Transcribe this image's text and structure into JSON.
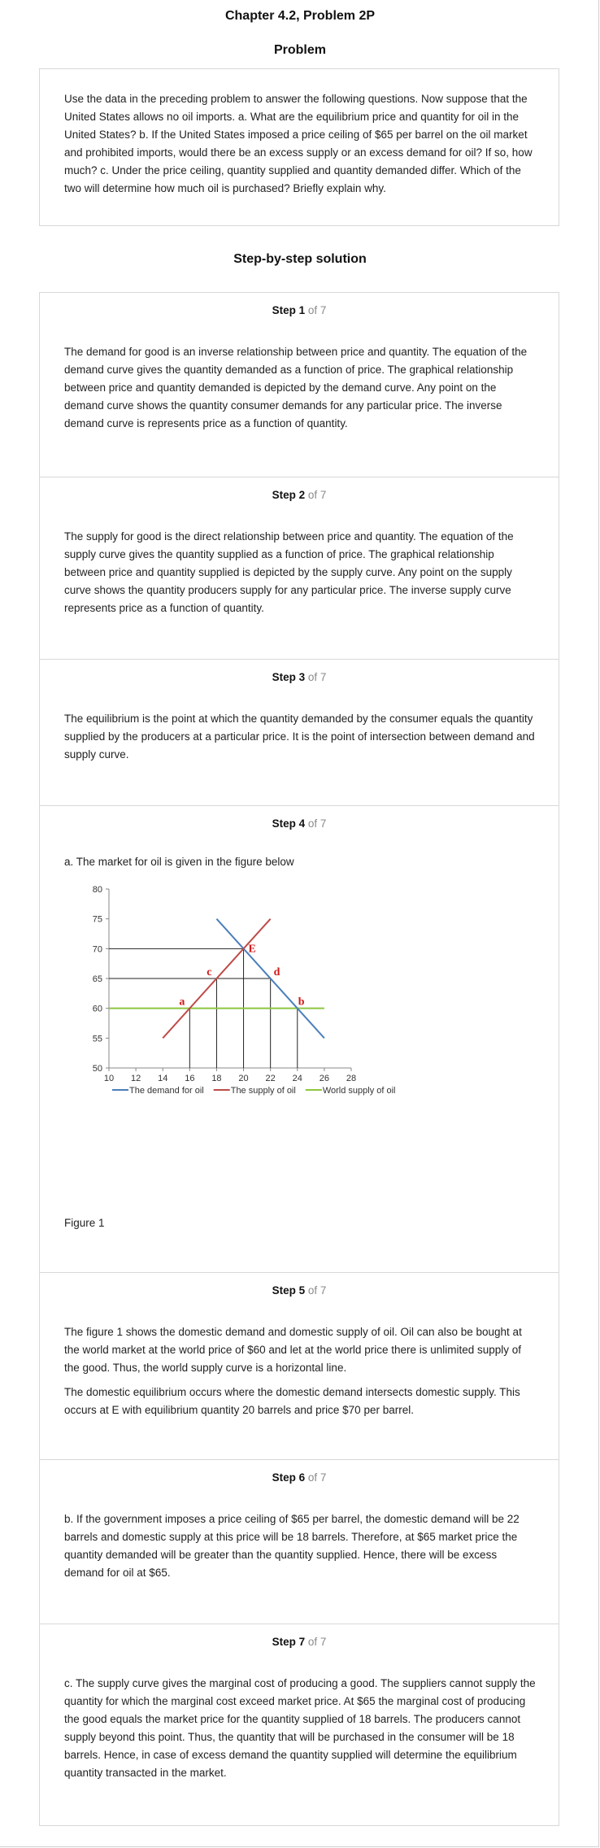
{
  "header": {
    "title": "Chapter 4.2, Problem 2P"
  },
  "problem": {
    "heading": "Problem",
    "text": "Use the data in the preceding problem to answer the following questions. Now suppose that the United States allows no oil imports. a. What are the equilibrium price and quantity for oil in the United States? b. If the United States imposed a price ceiling of $65 per barrel on the oil market and prohibited imports, would there be an excess supply or an excess demand for oil? If so, how much? c. Under the price ceiling, quantity supplied and quantity demanded differ. Which of the two will determine how much oil is purchased? Briefly explain why."
  },
  "solution": {
    "heading": "Step-by-step solution",
    "of_label": " of 7",
    "steps": [
      {
        "label": "Step 1",
        "paragraphs": [
          "The demand for good is an inverse relationship between price and quantity. The equation of the demand curve gives the quantity demanded as a function of price. The graphical relationship between price and quantity demanded is depicted by the demand curve. Any point on the demand curve shows the quantity consumer demands for any particular price. The inverse demand curve is represents price as a function of quantity."
        ]
      },
      {
        "label": "Step 2",
        "paragraphs": [
          "The supply for good is the direct relationship between price and quantity. The equation of the supply curve gives the quantity supplied as a function of price. The graphical relationship between price and quantity supplied is depicted by the supply curve. Any point on the supply curve shows the quantity producers supply for any particular price. The inverse supply curve represents price as a function of quantity."
        ]
      },
      {
        "label": "Step 3",
        "paragraphs": [
          "The equilibrium is the point at which the quantity demanded by the consumer equals the quantity supplied by the producers at a particular price. It is the point of intersection between demand and supply curve."
        ]
      },
      {
        "label": "Step 4",
        "paragraphs": [
          "a. The market for oil is given in the figure below"
        ],
        "caption": "Figure 1"
      },
      {
        "label": "Step 5",
        "paragraphs": [
          "The figure 1 shows the domestic demand and domestic supply of oil. Oil can also be bought at the world market at the world price of $60 and let at the world price there is unlimited supply of the good. Thus, the world supply curve is a horizontal line.",
          "The domestic equilibrium occurs where the domestic demand intersects domestic supply. This occurs at E with equilibrium quantity 20 barrels and price $70 per barrel."
        ]
      },
      {
        "label": "Step 6",
        "paragraphs": [
          "b. If the government imposes a price ceiling of $65 per barrel, the domestic demand will be 22 barrels and domestic supply at this price will be 18 barrels. Therefore, at $65 market price the quantity demanded will be greater than the quantity supplied. Hence, there will be excess demand for oil at $65."
        ]
      },
      {
        "label": "Step 7",
        "paragraphs": [
          "c. The supply curve gives the marginal cost of producing a good. The suppliers cannot supply the quantity for which the marginal cost exceed market price. At $65 the marginal cost of producing the good equals the market price for the quantity supplied of 18 barrels. The producers cannot supply beyond this point. Thus, the quantity that will be purchased in the consumer will be 18 barrels. Hence, in case of excess demand the quantity supplied will determine the equilibrium quantity transacted in the market."
        ]
      }
    ]
  },
  "chart_data": {
    "type": "line",
    "xlim": [
      10,
      28
    ],
    "ylim": [
      50,
      80
    ],
    "xticks": [
      10,
      12,
      14,
      16,
      18,
      20,
      22,
      24,
      26,
      28
    ],
    "yticks": [
      50,
      55,
      60,
      65,
      70,
      75,
      80
    ],
    "grid": false,
    "legend_position": "bottom",
    "series": [
      {
        "name": "The demand for oil",
        "color": "#4a7ebb",
        "points": [
          [
            18,
            75
          ],
          [
            26,
            55
          ]
        ]
      },
      {
        "name": "The supply of oil",
        "color": "#be4b48",
        "points": [
          [
            14,
            55
          ],
          [
            22,
            75
          ]
        ]
      },
      {
        "name": "World supply of oil",
        "color": "#8cc63f",
        "points": [
          [
            10,
            60
          ],
          [
            26,
            60
          ]
        ]
      }
    ],
    "guides": [
      {
        "from": [
          10,
          70
        ],
        "to": [
          20,
          70
        ]
      },
      {
        "from": [
          20,
          70
        ],
        "to": [
          20,
          50
        ]
      },
      {
        "from": [
          10,
          65
        ],
        "to": [
          22,
          65
        ]
      },
      {
        "from": [
          18,
          65
        ],
        "to": [
          18,
          50
        ]
      },
      {
        "from": [
          22,
          65
        ],
        "to": [
          22,
          50
        ]
      },
      {
        "from": [
          16,
          60
        ],
        "to": [
          16,
          50
        ]
      },
      {
        "from": [
          24,
          60
        ],
        "to": [
          24,
          50
        ]
      }
    ],
    "annotations": [
      {
        "text": "E",
        "x": 20,
        "y": 70
      },
      {
        "text": "c",
        "x": 18,
        "y": 65
      },
      {
        "text": "d",
        "x": 22,
        "y": 65
      },
      {
        "text": "a",
        "x": 16,
        "y": 60
      },
      {
        "text": "b",
        "x": 24,
        "y": 60
      }
    ]
  }
}
